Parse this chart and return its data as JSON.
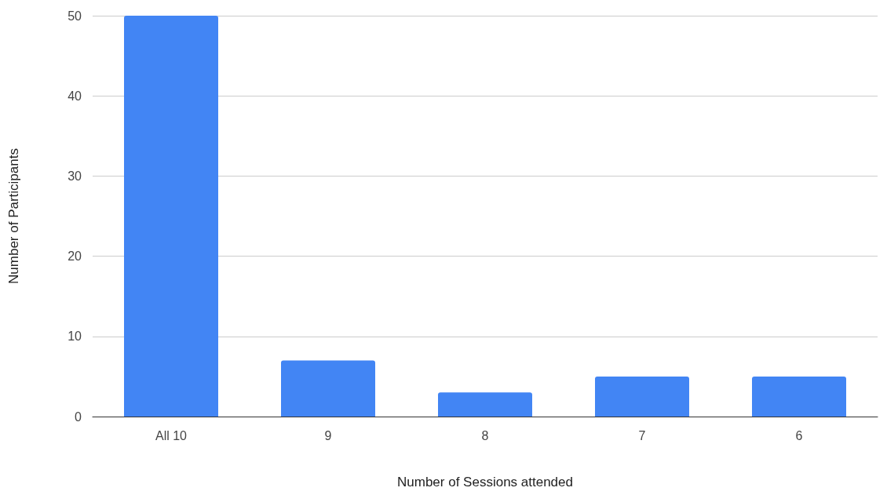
{
  "chart_data": {
    "type": "bar",
    "xlabel": "Number of Sessions attended",
    "ylabel": "Number of Participants",
    "categories": [
      "All 10",
      "9",
      "8",
      "7",
      "6"
    ],
    "values": [
      50,
      7,
      3,
      5,
      5
    ],
    "color": "#4285f4",
    "ylim": [
      0,
      50
    ],
    "yticks": [
      0,
      10,
      20,
      30,
      40,
      50
    ],
    "grid": "y"
  }
}
